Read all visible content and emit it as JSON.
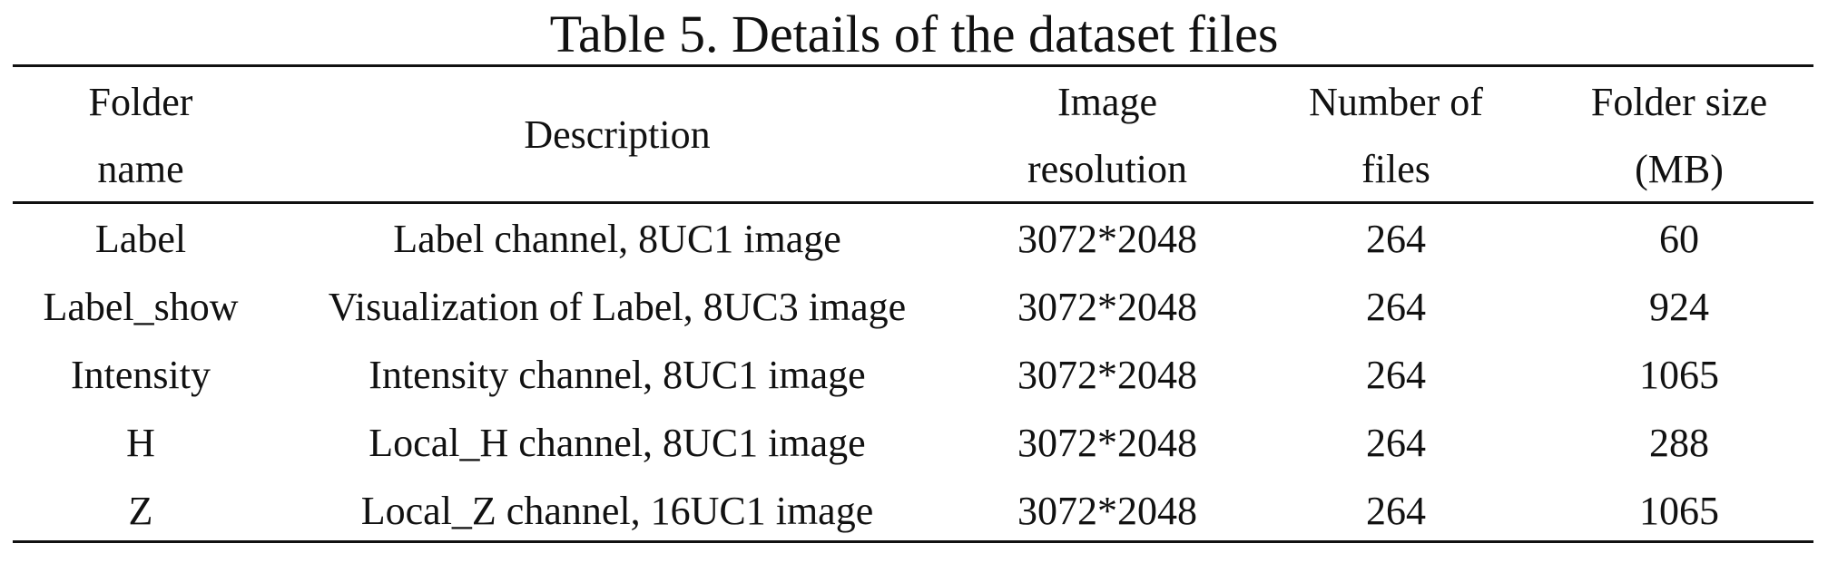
{
  "caption": "Table 5. Details of the dataset files",
  "headers": [
    {
      "line1": "Folder",
      "line2": "name"
    },
    {
      "line1": "Description",
      "line2": ""
    },
    {
      "line1": "Image",
      "line2": "resolution"
    },
    {
      "line1": "Number of",
      "line2": "files"
    },
    {
      "line1": "Folder size",
      "line2": "(MB)"
    }
  ],
  "rows": [
    [
      "Label",
      "Label channel, 8UC1 image",
      "3072*2048",
      "264",
      "60"
    ],
    [
      "Label_show",
      "Visualization of Label, 8UC3 image",
      "3072*2048",
      "264",
      "924"
    ],
    [
      "Intensity",
      "Intensity channel, 8UC1 image",
      "3072*2048",
      "264",
      "1065"
    ],
    [
      "H",
      "Local_H channel, 8UC1 image",
      "3072*2048",
      "264",
      "288"
    ],
    [
      "Z",
      "Local_Z channel, 16UC1 image",
      "3072*2048",
      "264",
      "1065"
    ]
  ]
}
